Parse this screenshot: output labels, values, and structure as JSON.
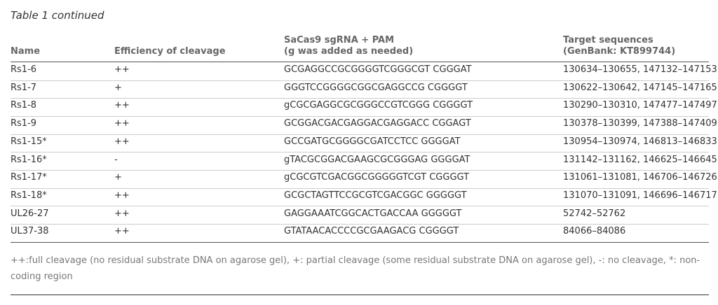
{
  "caption": "Table 1 continued",
  "table": {
    "headers": [
      [
        "Name"
      ],
      [
        "Efficiency of cleavage"
      ],
      [
        "SaCas9 sgRNA + PAM",
        "(g was added as needed)"
      ],
      [
        "Target sequences",
        "(GenBank: KT899744)"
      ]
    ],
    "rows": [
      [
        "Rs1-6",
        "++",
        "GCGAGGCCGCGGGGTCGGGCGT CGGGAT",
        "130634–130655, 147132–147153"
      ],
      [
        "Rs1-7",
        "+",
        "GGGTCCGGGGCGGCGAGGCCG CGGGGT",
        "130622–130642, 147145–147165"
      ],
      [
        "Rs1-8",
        "++",
        "gCGCGAGGCGCGGGCCGTCGGG CGGGGT",
        "130290–130310, 147477–147497"
      ],
      [
        "Rs1-9",
        "++",
        "GCGGACGACGAGGACGAGGACC CGGAGT",
        "130378–130399, 147388–147409"
      ],
      [
        "Rs1-15*",
        "++",
        "GCCGATGCGGGGCGATCCTCC GGGGAT",
        "130954–130974, 146813–146833"
      ],
      [
        "Rs1-16*",
        "-",
        "gTACGCGGACGAAGCGCGGGAG GGGGAT",
        "131142–131162, 146625–146645"
      ],
      [
        "Rs1-17*",
        "+",
        "gCGCGTCGACGGCGGGGGTCGT CGGGGT",
        "131061–131081, 146706–146726"
      ],
      [
        "Rs1-18*",
        "++",
        "GCGCTAGTTCCGCGTCGACGGC GGGGGT",
        "131070–131091, 146696–146717"
      ],
      [
        "UL26-27",
        "++",
        "GAGGAAATCGGCACTGACCAA GGGGGT",
        "52742–52762"
      ],
      [
        "UL37-38",
        "++",
        "GTATAACACCCCGCGAAGACG CGGGGT",
        "84066–84086"
      ]
    ]
  },
  "footnote": "++:full cleavage (no residual substrate DNA on agarose gel), +: partial cleavage (some residual substrate DNA on agarose gel), -: no cleavage, *: non-coding region"
}
